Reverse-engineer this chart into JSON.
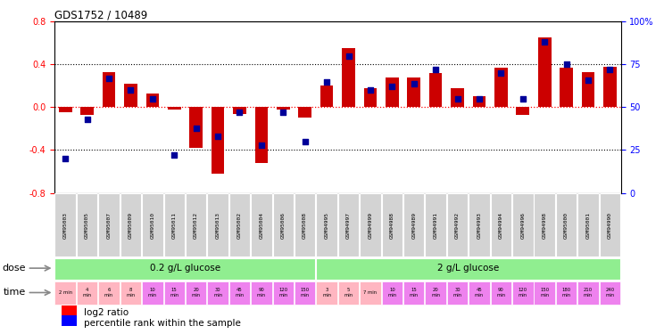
{
  "title": "GDS1752 / 10489",
  "samples": [
    "GSM95003",
    "GSM95005",
    "GSM95007",
    "GSM95009",
    "GSM95010",
    "GSM95011",
    "GSM95012",
    "GSM95013",
    "GSM95002",
    "GSM95004",
    "GSM95006",
    "GSM95008",
    "GSM94995",
    "GSM94997",
    "GSM94999",
    "GSM94988",
    "GSM94989",
    "GSM94991",
    "GSM94992",
    "GSM94993",
    "GSM94994",
    "GSM94996",
    "GSM94998",
    "GSM95000",
    "GSM95001",
    "GSM94990"
  ],
  "log2_ratio": [
    -0.05,
    -0.07,
    0.33,
    0.22,
    0.13,
    -0.02,
    -0.38,
    -0.62,
    -0.06,
    -0.52,
    -0.02,
    -0.1,
    0.2,
    0.55,
    0.18,
    0.28,
    0.28,
    0.32,
    0.18,
    0.1,
    0.37,
    -0.07,
    0.65,
    0.37,
    0.33,
    0.38
  ],
  "percentile": [
    20,
    43,
    67,
    60,
    55,
    22,
    38,
    33,
    47,
    28,
    47,
    30,
    65,
    80,
    60,
    62,
    64,
    72,
    55,
    55,
    70,
    55,
    88,
    75,
    66,
    72
  ],
  "bar_color": "#CC0000",
  "dot_color": "#000099",
  "ylim_left": [
    -0.8,
    0.8
  ],
  "ylim_right": [
    0,
    100
  ],
  "yticks_left": [
    -0.8,
    -0.4,
    0.0,
    0.4,
    0.8
  ],
  "yticks_right": [
    0,
    25,
    50,
    75,
    100
  ],
  "ytick_labels_right": [
    "0",
    "25",
    "50",
    "75",
    "100%"
  ],
  "dose_labels": [
    "0.2 g/L glucose",
    "2 g/L glucose"
  ],
  "dose_ranges": [
    [
      0,
      12
    ],
    [
      12,
      26
    ]
  ],
  "dose_color": "#90EE90",
  "time_labels": [
    "2 min",
    "4\nmin",
    "6\nmin",
    "8\nmin",
    "10\nmin",
    "15\nmin",
    "20\nmin",
    "30\nmin",
    "45\nmin",
    "90\nmin",
    "120\nmin",
    "150\nmin",
    "3\nmin",
    "5\nmin",
    "7 min",
    "10\nmin",
    "15\nmin",
    "20\nmin",
    "30\nmin",
    "45\nmin",
    "90\nmin",
    "120\nmin",
    "150\nmin",
    "180\nmin",
    "210\nmin",
    "240\nmin"
  ],
  "time_cell_colors": [
    "#FFB6C1",
    "#FFB6C1",
    "#FFB6C1",
    "#FFB6C1",
    "#EE82EE",
    "#EE82EE",
    "#EE82EE",
    "#EE82EE",
    "#EE82EE",
    "#EE82EE",
    "#EE82EE",
    "#EE82EE",
    "#FFB6C1",
    "#FFB6C1",
    "#FFB6C1",
    "#EE82EE",
    "#EE82EE",
    "#EE82EE",
    "#EE82EE",
    "#EE82EE",
    "#EE82EE",
    "#EE82EE",
    "#EE82EE",
    "#EE82EE",
    "#EE82EE",
    "#EE82EE"
  ],
  "sample_box_color": "#D3D3D3",
  "legend_red_label": "log2 ratio",
  "legend_blue_label": "percentile rank within the sample"
}
